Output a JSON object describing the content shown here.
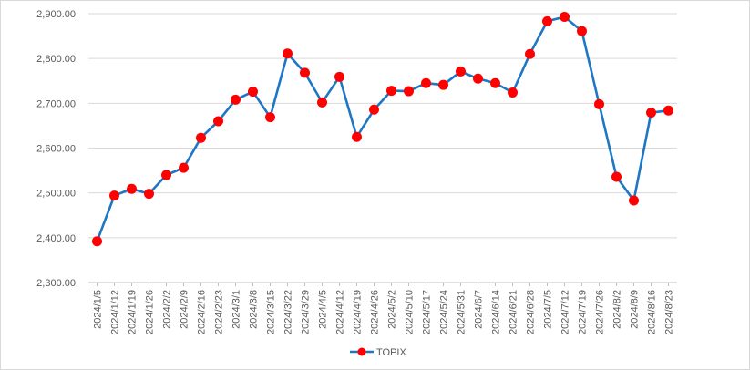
{
  "chart_data": {
    "type": "line",
    "ylim": [
      2300,
      2900
    ],
    "y_ticks": [
      "2,300.00",
      "2,400.00",
      "2,500.00",
      "2,600.00",
      "2,700.00",
      "2,800.00",
      "2,900.00"
    ],
    "y_tick_values": [
      2300,
      2400,
      2500,
      2600,
      2700,
      2800,
      2900
    ],
    "grid": "horizontal",
    "legend_position": "bottom",
    "series_color": "#1f77c4",
    "marker_color": "#ff0000",
    "categories": [
      "2024/1/5",
      "2024/1/12",
      "2024/1/19",
      "2024/1/26",
      "2024/2/2",
      "2024/2/9",
      "2024/2/16",
      "2024/2/23",
      "2024/3/1",
      "2024/3/8",
      "2024/3/15",
      "2024/3/22",
      "2024/3/29",
      "2024/4/5",
      "2024/4/12",
      "2024/4/19",
      "2024/4/26",
      "2024/5/2",
      "2024/5/10",
      "2024/5/17",
      "2024/5/24",
      "2024/5/31",
      "2024/6/7",
      "2024/6/14",
      "2024/6/21",
      "2024/6/28",
      "2024/7/5",
      "2024/7/12",
      "2024/7/19",
      "2024/7/26",
      "2024/8/2",
      "2024/8/9",
      "2024/8/16",
      "2024/8/23"
    ],
    "series": [
      {
        "name": "TOPIX",
        "values": [
          2392,
          2494,
          2509,
          2498,
          2540,
          2556,
          2623,
          2660,
          2708,
          2726,
          2669,
          2811,
          2768,
          2702,
          2759,
          2625,
          2686,
          2728,
          2727,
          2745,
          2741,
          2771,
          2755,
          2745,
          2724,
          2810,
          2883,
          2893,
          2861,
          2698,
          2536,
          2483,
          2679,
          2684
        ]
      }
    ]
  }
}
